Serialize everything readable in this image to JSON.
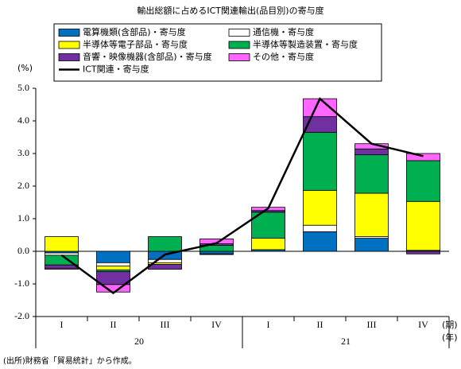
{
  "chart_data": {
    "type": "bar",
    "title": "輸出総額に占めるICT関連輸出(品目別)の寄与度",
    "y_unit": "(%)",
    "x_unit_period": "(期)",
    "x_unit_year": "(年)",
    "source": "(出所)財務省「貿易統計」から作成。",
    "categories": [
      "I",
      "II",
      "III",
      "IV",
      "I",
      "II",
      "III",
      "IV"
    ],
    "years": [
      "20",
      "21"
    ],
    "ylim": [
      -2,
      5
    ],
    "yticks": [
      {
        "value": 5,
        "label": "5.0"
      },
      {
        "value": 4,
        "label": "4.0"
      },
      {
        "value": 3,
        "label": "3.0"
      },
      {
        "value": 2,
        "label": "2.0"
      },
      {
        "value": 1,
        "label": "1.0"
      },
      {
        "value": 0,
        "label": "0.0"
      },
      {
        "value": -1,
        "label": "-1.0"
      },
      {
        "value": -2,
        "label": "-2.0"
      }
    ],
    "series": [
      {
        "name": "電算機類(含部品)・寄与度",
        "color": "#0070c0",
        "values": [
          -0.05,
          -0.35,
          -0.25,
          -0.08,
          0.05,
          0.6,
          0.4,
          0.03
        ]
      },
      {
        "name": "通信機・寄与度",
        "color": "#ffffff",
        "values": [
          -0.07,
          -0.1,
          -0.1,
          0,
          0,
          0.2,
          0.05,
          0
        ]
      },
      {
        "name": "半導体等電子部品・寄与度",
        "color": "#ffff00",
        "values": [
          0.45,
          -0.12,
          -0.05,
          -0.02,
          0.35,
          1.07,
          1.33,
          1.5
        ]
      },
      {
        "name": "半導体等製造装置・寄与度",
        "color": "#00b050",
        "values": [
          -0.3,
          -0.05,
          0.45,
          0.18,
          0.8,
          1.78,
          1.18,
          1.25
        ]
      },
      {
        "name": "音響・映像機器(含部品)・寄与度",
        "color": "#7030a0",
        "values": [
          -0.1,
          -0.4,
          -0.15,
          0.05,
          0.05,
          0.48,
          0.18,
          -0.08
        ]
      },
      {
        "name": "その他・寄与度",
        "color": "#ff66ff",
        "values": [
          -0.03,
          -0.23,
          0,
          0.15,
          0.1,
          0.55,
          0.16,
          0.22
        ]
      },
      {
        "name": "ICT関連・寄与度",
        "type": "line",
        "color": "#000000",
        "values": [
          -0.12,
          -1.28,
          -0.1,
          0.25,
          1.32,
          4.68,
          3.3,
          2.92
        ]
      }
    ]
  }
}
